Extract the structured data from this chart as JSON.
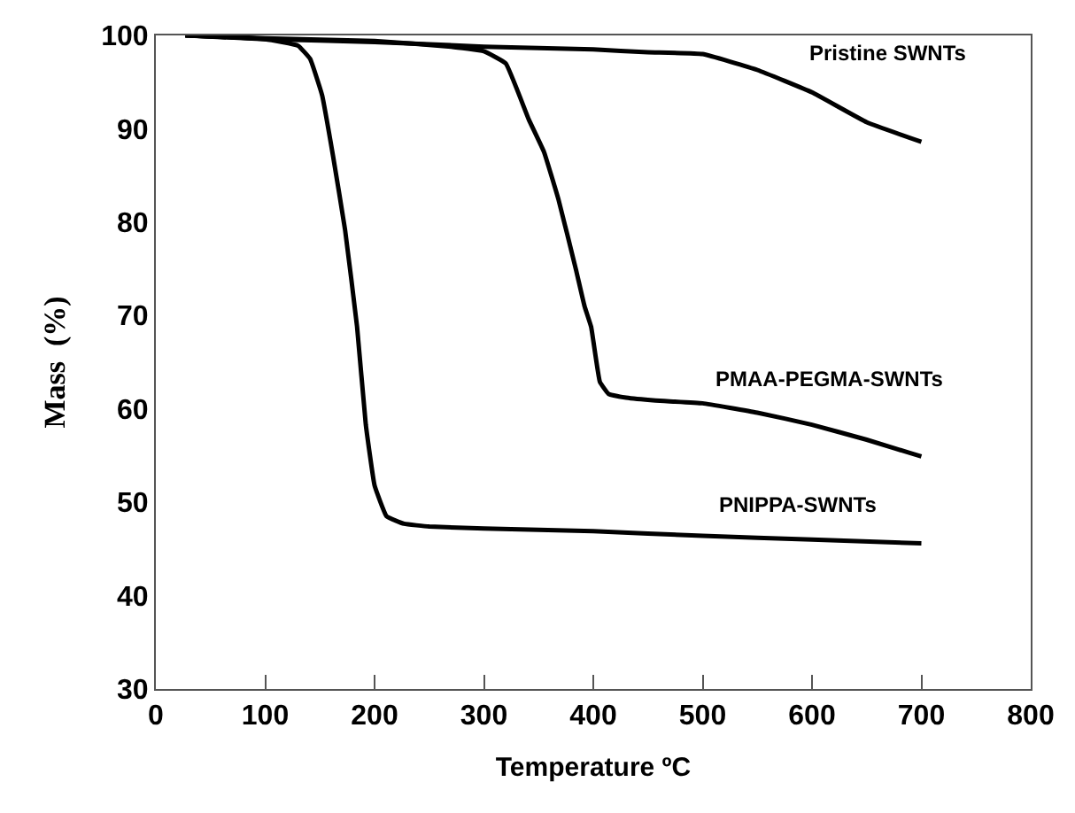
{
  "chart_data": {
    "type": "line",
    "xlabel": "Temperature ºC",
    "ylabel": "Mass  (%)",
    "xlim": [
      0,
      800
    ],
    "ylim": [
      30,
      100
    ],
    "xticks": [
      0,
      100,
      200,
      300,
      400,
      500,
      600,
      700,
      800
    ],
    "yticks": [
      30,
      40,
      50,
      60,
      70,
      80,
      90,
      100
    ],
    "legend": false,
    "marker": "none",
    "line_style": "solid",
    "series": [
      {
        "name": "Pristine SWNTs",
        "color": "#000000",
        "x": [
          27,
          100,
          200,
          300,
          400,
          450,
          500,
          550,
          600,
          650,
          700
        ],
        "values": [
          100,
          99.6,
          99.3,
          98.8,
          98.5,
          98.2,
          98.0,
          96.3,
          93.9,
          90.7,
          88.6
        ]
      },
      {
        "name": "PMAA-PEGMA-SWNTs",
        "color": "#000000",
        "x": [
          27,
          100,
          200,
          270,
          300,
          320,
          341,
          355,
          368,
          384,
          392,
          398,
          406,
          414,
          430,
          457,
          500,
          550,
          600,
          650,
          700
        ],
        "values": [
          100,
          99.7,
          99.4,
          98.8,
          98.3,
          97.0,
          91.0,
          87.5,
          82.5,
          75.0,
          71.0,
          68.8,
          62.9,
          61.6,
          61.2,
          60.9,
          60.6,
          59.6,
          58.3,
          56.7,
          54.9
        ]
      },
      {
        "name": "PNIPPA-SWNTs",
        "color": "#000000",
        "x": [
          27,
          100,
          130,
          141,
          152,
          162,
          173,
          184,
          192,
          200,
          211,
          227,
          250,
          300,
          400,
          500,
          600,
          700
        ],
        "values": [
          100,
          99.6,
          98.9,
          97.5,
          93.6,
          87.1,
          79.2,
          68.8,
          58.3,
          51.8,
          48.5,
          47.7,
          47.4,
          47.2,
          46.9,
          46.4,
          46.0,
          45.6
        ]
      }
    ]
  }
}
